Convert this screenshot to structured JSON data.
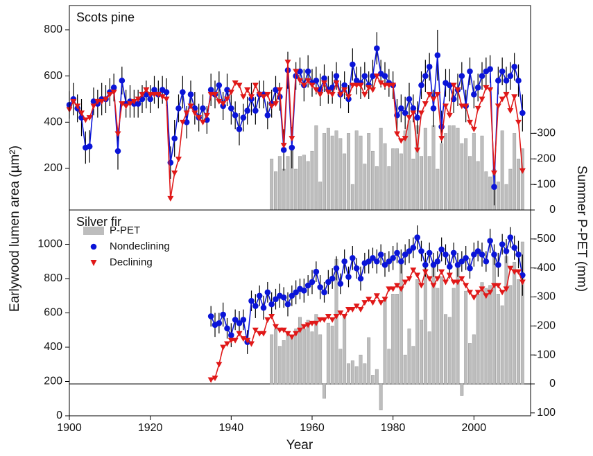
{
  "chart_data": [
    {
      "type": "line",
      "title": "Scots pine",
      "ylabel": "Earlywood lumen area (µm²)",
      "y2label": "Summer P-PET (mm)",
      "xlim": [
        1900,
        2014
      ],
      "ylim": [
        20,
        905
      ],
      "yticks": [
        200,
        400,
        600,
        800
      ],
      "y2lim": [
        0,
        -800
      ],
      "y2ticks": [
        0,
        -100,
        -200,
        -300
      ],
      "x": [
        1900,
        1901,
        1902,
        1903,
        1904,
        1905,
        1906,
        1907,
        1908,
        1909,
        1910,
        1911,
        1912,
        1913,
        1914,
        1915,
        1916,
        1917,
        1918,
        1919,
        1920,
        1921,
        1922,
        1923,
        1924,
        1925,
        1926,
        1927,
        1928,
        1929,
        1930,
        1931,
        1932,
        1933,
        1934,
        1935,
        1936,
        1937,
        1938,
        1939,
        1940,
        1941,
        1942,
        1943,
        1944,
        1945,
        1946,
        1947,
        1948,
        1949,
        1950,
        1951,
        1952,
        1953,
        1954,
        1955,
        1956,
        1957,
        1958,
        1959,
        1960,
        1961,
        1962,
        1963,
        1964,
        1965,
        1966,
        1967,
        1968,
        1969,
        1970,
        1971,
        1972,
        1973,
        1974,
        1975,
        1976,
        1977,
        1978,
        1979,
        1980,
        1981,
        1982,
        1983,
        1984,
        1985,
        1986,
        1987,
        1988,
        1989,
        1990,
        1991,
        1992,
        1993,
        1994,
        1995,
        1996,
        1997,
        1998,
        1999,
        2000,
        2001,
        2002,
        2003,
        2004,
        2005,
        2006,
        2007,
        2008,
        2009,
        2010,
        2011,
        2012
      ],
      "series": [
        {
          "type": "bar",
          "axis": "y2",
          "color": "#bdbdbd",
          "x": [
            1950,
            1951,
            1952,
            1953,
            1954,
            1955,
            1956,
            1957,
            1958,
            1959,
            1960,
            1961,
            1962,
            1963,
            1964,
            1965,
            1966,
            1967,
            1968,
            1969,
            1970,
            1971,
            1972,
            1973,
            1974,
            1975,
            1976,
            1977,
            1978,
            1979,
            1980,
            1981,
            1982,
            1983,
            1984,
            1985,
            1986,
            1987,
            1988,
            1989,
            1990,
            1991,
            1992,
            1993,
            1994,
            1995,
            1996,
            1997,
            1998,
            1999,
            2000,
            2001,
            2002,
            2003,
            2004,
            2005,
            2006,
            2007,
            2008,
            2009,
            2010,
            2011,
            2012
          ],
          "values": [
            -200,
            -150,
            -210,
            -160,
            -210,
            -240,
            -160,
            -210,
            -215,
            -190,
            -230,
            -330,
            -110,
            -300,
            -320,
            -290,
            -310,
            -280,
            -220,
            -300,
            -100,
            -310,
            -290,
            -180,
            -300,
            -230,
            -170,
            -320,
            -260,
            -170,
            -240,
            -240,
            -220,
            -310,
            -350,
            -200,
            -330,
            -210,
            -320,
            -210,
            -330,
            -160,
            -260,
            -300,
            -330,
            -330,
            -320,
            -260,
            -280,
            -210,
            -300,
            -190,
            -290,
            -150,
            -130,
            -160,
            -110,
            -310,
            -100,
            -160,
            -300,
            -200,
            -240
          ]
        },
        {
          "type": "line",
          "color": "#0a14d8",
          "marker": "circle",
          "values": [
            475,
            500,
            460,
            420,
            290,
            295,
            490,
            480,
            500,
            500,
            530,
            550,
            275,
            580,
            480,
            490,
            480,
            480,
            500,
            520,
            500,
            540,
            520,
            540,
            530,
            225,
            330,
            460,
            530,
            400,
            520,
            460,
            420,
            460,
            410,
            540,
            520,
            560,
            470,
            540,
            460,
            430,
            370,
            420,
            450,
            500,
            450,
            520,
            520,
            430,
            480,
            540,
            510,
            280,
            625,
            290,
            600,
            620,
            560,
            620,
            570,
            580,
            540,
            590,
            540,
            550,
            600,
            520,
            560,
            500,
            650,
            580,
            570,
            600,
            560,
            600,
            720,
            610,
            600,
            570,
            560,
            430,
            460,
            440,
            500,
            460,
            420,
            560,
            600,
            640,
            460,
            690,
            380,
            570,
            560,
            500,
            540,
            600,
            470,
            620,
            520,
            550,
            600,
            620,
            630,
            120,
            580,
            620,
            580,
            600,
            640,
            580,
            440
          ],
          "errors": [
            60,
            70,
            60,
            80,
            70,
            70,
            60,
            60,
            70,
            60,
            60,
            60,
            80,
            60,
            60,
            70,
            60,
            60,
            60,
            60,
            60,
            60,
            60,
            60,
            60,
            70,
            80,
            60,
            70,
            70,
            60,
            70,
            60,
            60,
            60,
            70,
            60,
            60,
            60,
            70,
            70,
            60,
            70,
            60,
            60,
            70,
            60,
            60,
            60,
            60,
            60,
            60,
            60,
            90,
            80,
            90,
            60,
            60,
            70,
            70,
            60,
            60,
            70,
            60,
            60,
            70,
            60,
            60,
            60,
            60,
            70,
            60,
            70,
            60,
            60,
            70,
            70,
            60,
            60,
            60,
            60,
            70,
            60,
            70,
            70,
            60,
            70,
            60,
            70,
            60,
            80,
            110,
            70,
            60,
            70,
            60,
            70,
            60,
            70,
            60,
            60,
            60,
            60,
            60,
            60,
            80,
            60,
            60,
            60,
            60,
            60,
            70,
            80
          ]
        },
        {
          "type": "line",
          "color": "#e01818",
          "marker": "triangle",
          "values": [
            455,
            490,
            470,
            440,
            410,
            420,
            470,
            490,
            490,
            500,
            520,
            530,
            350,
            480,
            470,
            480,
            490,
            500,
            520,
            540,
            520,
            520,
            520,
            510,
            500,
            70,
            180,
            240,
            400,
            440,
            470,
            440,
            420,
            400,
            430,
            520,
            520,
            490,
            480,
            500,
            530,
            570,
            560,
            510,
            540,
            510,
            560,
            520,
            510,
            520,
            470,
            480,
            540,
            300,
            660,
            330,
            620,
            580,
            560,
            580,
            560,
            540,
            520,
            570,
            530,
            520,
            570,
            520,
            540,
            510,
            560,
            560,
            560,
            520,
            550,
            540,
            600,
            570,
            560,
            560,
            560,
            350,
            320,
            330,
            420,
            440,
            280,
            440,
            480,
            520,
            500,
            520,
            330,
            470,
            430,
            560,
            540,
            470,
            470,
            400,
            370,
            460,
            500,
            550,
            540,
            180,
            470,
            500,
            520,
            450,
            510,
            400,
            190
          ]
        }
      ]
    },
    {
      "type": "line",
      "title": "Silver fir",
      "xlabel": "Year",
      "legend": "upper left",
      "xlim": [
        1900,
        2014
      ],
      "xticks": [
        1900,
        1920,
        1940,
        1960,
        1980,
        2000
      ],
      "ylim": [
        0,
        1200
      ],
      "yticks": [
        0,
        200,
        400,
        600,
        800,
        1000
      ],
      "y2lim": [
        110,
        -600
      ],
      "y2ticks": [
        100,
        0,
        -100,
        -200,
        -300,
        -400,
        -500
      ],
      "x": [
        1935,
        1936,
        1937,
        1938,
        1939,
        1940,
        1941,
        1942,
        1943,
        1944,
        1945,
        1946,
        1947,
        1948,
        1949,
        1950,
        1951,
        1952,
        1953,
        1954,
        1955,
        1956,
        1957,
        1958,
        1959,
        1960,
        1961,
        1962,
        1963,
        1964,
        1965,
        1966,
        1967,
        1968,
        1969,
        1970,
        1971,
        1972,
        1973,
        1974,
        1975,
        1976,
        1977,
        1978,
        1979,
        1980,
        1981,
        1982,
        1983,
        1984,
        1985,
        1986,
        1987,
        1988,
        1989,
        1990,
        1991,
        1992,
        1993,
        1994,
        1995,
        1996,
        1997,
        1998,
        1999,
        2000,
        2001,
        2002,
        2003,
        2004,
        2005,
        2006,
        2007,
        2008,
        2009,
        2010,
        2011,
        2012
      ],
      "series": [
        {
          "type": "bar",
          "axis": "y2",
          "name": "P-PET",
          "color": "#bdbdbd",
          "x": [
            1950,
            1951,
            1952,
            1953,
            1954,
            1955,
            1956,
            1957,
            1958,
            1959,
            1960,
            1961,
            1962,
            1963,
            1964,
            1965,
            1966,
            1967,
            1968,
            1969,
            1970,
            1971,
            1972,
            1973,
            1974,
            1975,
            1976,
            1977,
            1978,
            1979,
            1980,
            1981,
            1982,
            1983,
            1984,
            1985,
            1986,
            1987,
            1988,
            1989,
            1990,
            1991,
            1992,
            1993,
            1994,
            1995,
            1996,
            1997,
            1998,
            1999,
            2000,
            2001,
            2002,
            2003,
            2004,
            2005,
            2006,
            2007,
            2008,
            2009,
            2010,
            2011,
            2012
          ],
          "values": [
            -170,
            -190,
            -130,
            -150,
            -180,
            -160,
            -190,
            -230,
            -190,
            -220,
            -180,
            -240,
            -170,
            50,
            -210,
            -200,
            -430,
            -120,
            -230,
            -70,
            -80,
            -60,
            -100,
            -70,
            -160,
            -30,
            -50,
            90,
            -290,
            -120,
            -310,
            -310,
            -420,
            -100,
            -190,
            -130,
            -360,
            -220,
            -400,
            -180,
            -420,
            -330,
            -370,
            -240,
            -230,
            -330,
            -420,
            40,
            -320,
            -140,
            -170,
            -310,
            -350,
            -330,
            -340,
            -450,
            -310,
            -270,
            -440,
            -340,
            -420,
            -360,
            -490
          ]
        },
        {
          "type": "line",
          "name": "Nondeclining",
          "color": "#0a14d8",
          "marker": "circle",
          "values": [
            580,
            530,
            540,
            590,
            510,
            470,
            560,
            540,
            560,
            430,
            670,
            640,
            700,
            630,
            720,
            650,
            680,
            700,
            690,
            650,
            700,
            720,
            740,
            730,
            760,
            780,
            840,
            750,
            720,
            780,
            800,
            860,
            770,
            900,
            810,
            920,
            860,
            800,
            890,
            900,
            920,
            900,
            940,
            880,
            900,
            920,
            950,
            900,
            940,
            960,
            980,
            1040,
            960,
            880,
            950,
            880,
            900,
            970,
            940,
            870,
            950,
            880,
            900,
            920,
            860,
            940,
            960,
            940,
            900,
            1020,
            940,
            880,
            1000,
            960,
            1040,
            980,
            940,
            820
          ],
          "errors": [
            60,
            70,
            60,
            70,
            60,
            70,
            60,
            70,
            60,
            70,
            60,
            70,
            60,
            70,
            60,
            70,
            60,
            70,
            60,
            70,
            60,
            70,
            60,
            70,
            60,
            70,
            60,
            70,
            60,
            70,
            60,
            70,
            60,
            70,
            60,
            70,
            60,
            70,
            60,
            70,
            60,
            70,
            60,
            70,
            60,
            70,
            60,
            70,
            60,
            70,
            60,
            70,
            60,
            70,
            60,
            70,
            60,
            70,
            60,
            70,
            60,
            70,
            60,
            70,
            60,
            70,
            60,
            70,
            60,
            70,
            60,
            70,
            60,
            70,
            60,
            70,
            80,
            120
          ]
        },
        {
          "type": "line",
          "name": "Declining",
          "color": "#e01818",
          "marker": "triangle",
          "values": [
            210,
            220,
            300,
            400,
            420,
            440,
            440,
            480,
            450,
            440,
            420,
            500,
            480,
            480,
            560,
            580,
            520,
            500,
            500,
            480,
            460,
            480,
            500,
            520,
            530,
            540,
            540,
            560,
            560,
            580,
            560,
            580,
            600,
            580,
            620,
            620,
            640,
            620,
            660,
            680,
            660,
            700,
            660,
            680,
            740,
            740,
            760,
            740,
            780,
            800,
            850,
            820,
            760,
            840,
            800,
            760,
            800,
            840,
            780,
            820,
            780,
            780,
            800,
            760,
            720,
            690,
            720,
            740,
            700,
            720,
            760,
            760,
            720,
            740,
            860,
            840,
            840,
            780
          ]
        }
      ]
    }
  ]
}
